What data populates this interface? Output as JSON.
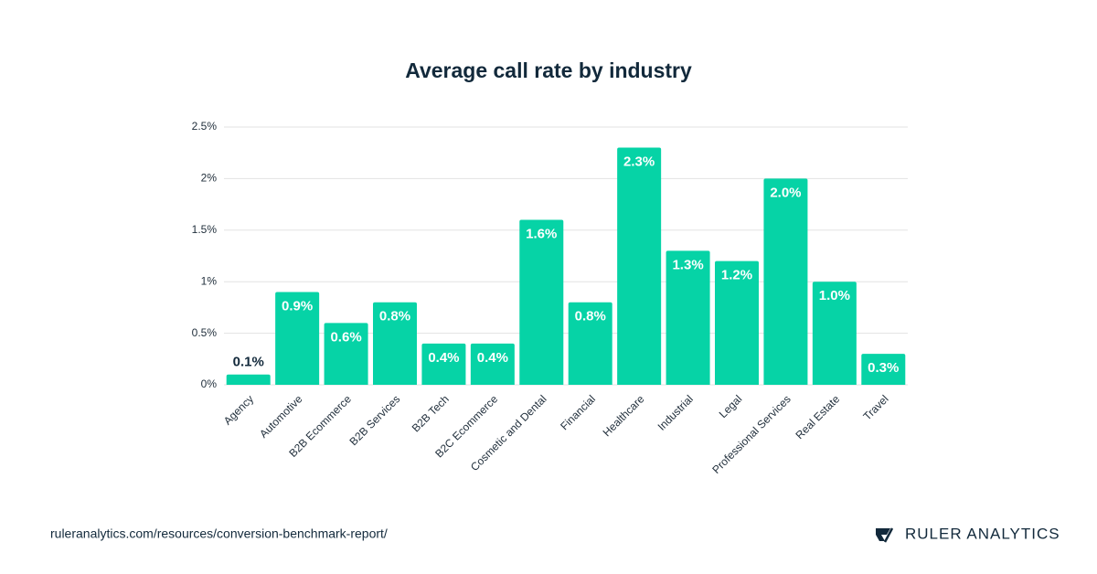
{
  "chart_data": {
    "type": "bar",
    "title": "Average call rate by industry",
    "categories": [
      "Agency",
      "Automotive",
      "B2B Ecommerce",
      "B2B Services",
      "B2B Tech",
      "B2C Ecommerce",
      "Cosmetic and Dental",
      "Financial",
      "Healthcare",
      "Industrial",
      "Legal",
      "Professional Services",
      "Real Estate",
      "Travel"
    ],
    "values": [
      0.1,
      0.9,
      0.6,
      0.8,
      0.4,
      0.4,
      1.6,
      0.8,
      2.3,
      1.3,
      1.2,
      2.0,
      1.0,
      0.3
    ],
    "value_labels": [
      "0.1%",
      "0.9%",
      "0.6%",
      "0.8%",
      "0.4%",
      "0.4%",
      "1.6%",
      "0.8%",
      "2.3%",
      "1.3%",
      "1.2%",
      "2.0%",
      "1.0%",
      "0.3%"
    ],
    "color": "#06d3a6",
    "ylim": [
      0,
      2.5
    ],
    "yticks": [
      {
        "value": 0,
        "label": "0%"
      },
      {
        "value": 0.5,
        "label": "0.5%"
      },
      {
        "value": 1,
        "label": "1%"
      },
      {
        "value": 1.5,
        "label": "1.5%"
      },
      {
        "value": 2,
        "label": "2%"
      },
      {
        "value": 2.5,
        "label": "2.5%"
      }
    ],
    "grid": true
  },
  "footer": {
    "source": "ruleranalytics.com/resources/conversion-benchmark-report/",
    "brand": "RULER ANALYTICS"
  }
}
